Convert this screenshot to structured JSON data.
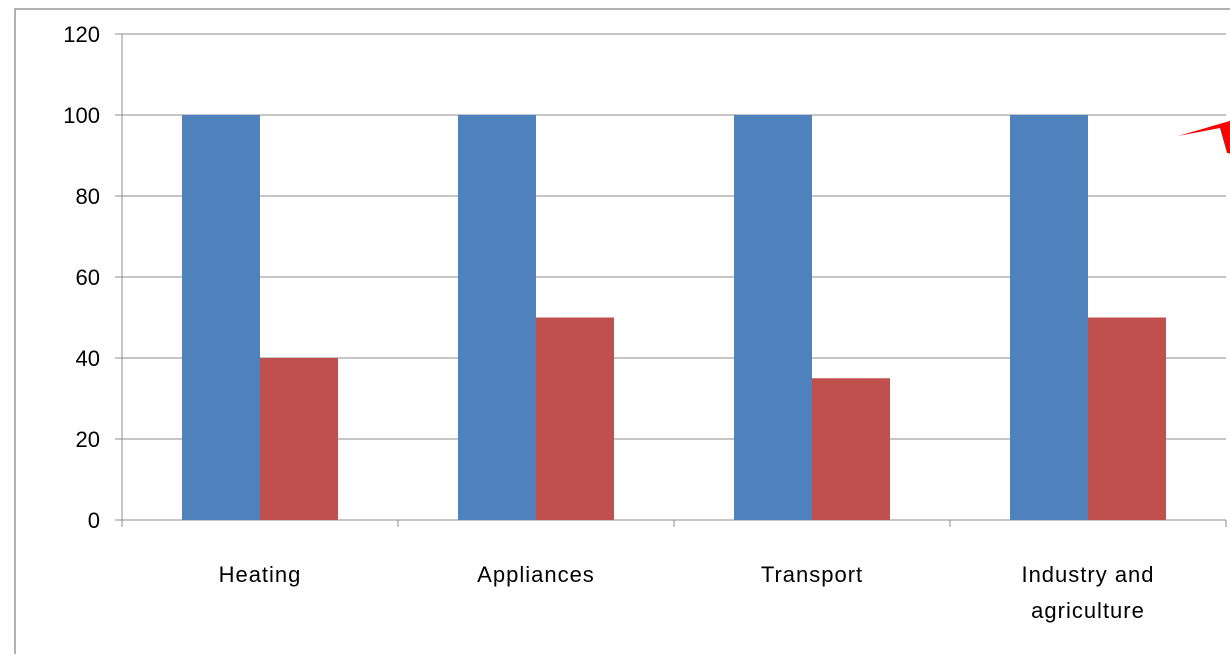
{
  "chart_data": {
    "type": "bar",
    "categories": [
      "Heating",
      "Appliances",
      "Transport",
      "Industry and agriculture"
    ],
    "category_label_lines": [
      [
        "Heating"
      ],
      [
        "Appliances"
      ],
      [
        "Transport"
      ],
      [
        "Industry and",
        "agriculture"
      ]
    ],
    "series": [
      {
        "values": [
          100,
          100,
          100,
          100
        ],
        "color": "#4F81BD"
      },
      {
        "values": [
          40,
          50,
          35,
          50
        ],
        "color": "#C0504D"
      }
    ],
    "ylim": [
      0,
      120
    ],
    "yticks": [
      "0",
      "20",
      "40",
      "60",
      "80",
      "100",
      "120"
    ],
    "grid": true,
    "legend": "none",
    "annotation": {
      "shape": "arrow",
      "color": "#FF0000"
    }
  }
}
